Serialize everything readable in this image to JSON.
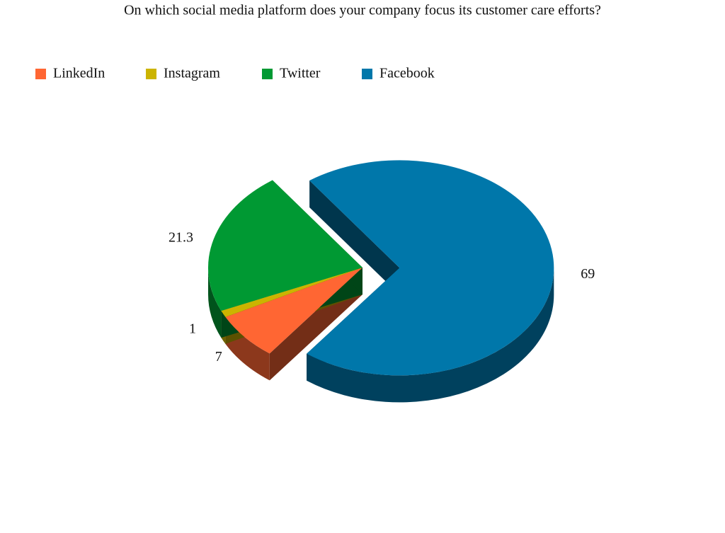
{
  "chart_data": {
    "type": "pie",
    "title": "On which social media platform does your company focus its customer care efforts?",
    "categories": [
      "LinkedIn",
      "Instagram",
      "Twitter",
      "Facebook"
    ],
    "values": [
      7,
      1,
      21.3,
      69
    ],
    "colors": [
      "#ff6633",
      "#ccb400",
      "#009933",
      "#0077aa"
    ],
    "legend": "top-left"
  }
}
